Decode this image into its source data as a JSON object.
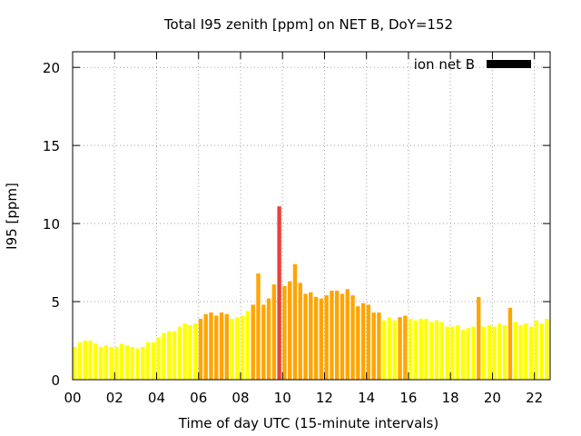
{
  "chart_data": {
    "type": "bar",
    "title": "Total I95 zenith [ppm] on NET B, DoY=152",
    "xlabel": "Time of day UTC (15-minute intervals)",
    "ylabel": "I95 [ppm]",
    "xlim": [
      0,
      22.75
    ],
    "ylim": [
      0,
      21
    ],
    "xticks": [
      "00",
      "02",
      "04",
      "06",
      "08",
      "10",
      "12",
      "14",
      "16",
      "18",
      "20",
      "22"
    ],
    "yticks": [
      "0",
      "5",
      "10",
      "15",
      "20"
    ],
    "grid": true,
    "legend": {
      "position": "top-right",
      "label": "ion net B",
      "color": "#000000"
    },
    "bar_width_hours": 0.19,
    "colors": {
      "low": "#ffff00",
      "medium": "#ffa500",
      "high": "#e8413a"
    },
    "x": [
      0,
      0.25,
      0.5,
      0.75,
      1,
      1.25,
      1.5,
      1.75,
      2,
      2.25,
      2.5,
      2.75,
      3,
      3.25,
      3.5,
      3.75,
      4,
      4.25,
      4.5,
      4.75,
      5,
      5.25,
      5.5,
      5.75,
      6,
      6.25,
      6.5,
      6.75,
      7,
      7.25,
      7.5,
      7.75,
      8,
      8.25,
      8.5,
      8.75,
      9,
      9.25,
      9.5,
      9.75,
      10,
      10.25,
      10.5,
      10.75,
      11,
      11.25,
      11.5,
      11.75,
      12,
      12.25,
      12.5,
      12.75,
      13,
      13.25,
      13.5,
      13.75,
      14,
      14.25,
      14.5,
      14.75,
      15,
      15.25,
      15.5,
      15.75,
      16,
      16.25,
      16.5,
      16.75,
      17,
      17.25,
      17.5,
      17.75,
      18,
      18.25,
      18.5,
      18.75,
      19,
      19.25,
      19.5,
      19.75,
      20,
      20.25,
      20.5,
      20.75,
      21,
      21.25,
      21.5,
      21.75,
      22,
      22.25,
      22.5,
      22.75
    ],
    "values": [
      2.1,
      2.4,
      2.5,
      2.5,
      2.3,
      2.1,
      2.2,
      2.1,
      2.1,
      2.3,
      2.2,
      2.1,
      2.0,
      2.1,
      2.4,
      2.4,
      2.7,
      3.0,
      3.1,
      3.1,
      3.4,
      3.6,
      3.5,
      3.6,
      3.9,
      4.2,
      4.3,
      4.1,
      4.3,
      4.2,
      3.9,
      4.0,
      4.1,
      4.4,
      4.8,
      6.8,
      4.8,
      5.2,
      6.1,
      11.1,
      6.0,
      6.3,
      7.4,
      6.2,
      5.5,
      5.6,
      5.3,
      5.2,
      5.4,
      5.7,
      5.7,
      5.5,
      5.8,
      5.4,
      4.7,
      4.9,
      4.8,
      4.3,
      4.3,
      3.8,
      4.0,
      3.8,
      4.0,
      4.1,
      3.9,
      3.8,
      3.9,
      3.9,
      3.7,
      3.8,
      3.7,
      3.4,
      3.4,
      3.5,
      3.2,
      3.3,
      3.4,
      5.3,
      3.4,
      3.5,
      3.4,
      3.6,
      3.5,
      4.6,
      3.7,
      3.5,
      3.6,
      3.4,
      3.8,
      3.6,
      3.9,
      4.0
    ],
    "levels": [
      "low",
      "low",
      "low",
      "low",
      "low",
      "low",
      "low",
      "low",
      "low",
      "low",
      "low",
      "low",
      "low",
      "low",
      "low",
      "low",
      "low",
      "low",
      "low",
      "low",
      "low",
      "low",
      "low",
      "low",
      "medium",
      "medium",
      "medium",
      "medium",
      "medium",
      "medium",
      "low",
      "low",
      "low",
      "low",
      "medium",
      "medium",
      "medium",
      "medium",
      "medium",
      "high",
      "medium",
      "medium",
      "medium",
      "medium",
      "medium",
      "medium",
      "medium",
      "medium",
      "medium",
      "medium",
      "medium",
      "medium",
      "medium",
      "medium",
      "medium",
      "medium",
      "medium",
      "medium",
      "medium",
      "low",
      "low",
      "low",
      "medium",
      "medium",
      "low",
      "low",
      "low",
      "low",
      "low",
      "low",
      "low",
      "low",
      "low",
      "low",
      "low",
      "low",
      "low",
      "medium",
      "low",
      "low",
      "low",
      "low",
      "low",
      "medium",
      "low",
      "low",
      "low",
      "low",
      "low",
      "low",
      "low",
      "low"
    ]
  }
}
